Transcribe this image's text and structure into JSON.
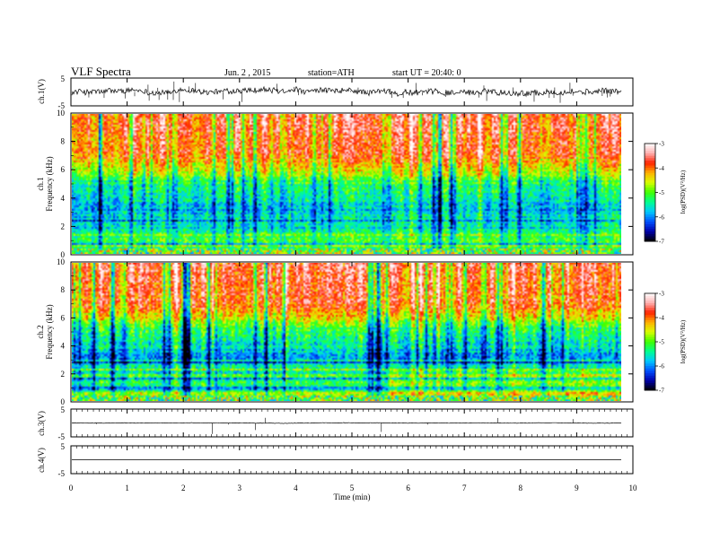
{
  "header": {
    "title": "VLF  Spectra",
    "date": "Jun. 2 , 2015",
    "station": "station=ATH",
    "start": "start  UT  =   20:40: 0"
  },
  "chart_data": {
    "type": "heatmap",
    "x_axis": {
      "label": "Time  (min)",
      "range": [
        0,
        10
      ],
      "ticks": [
        "0",
        "1",
        "2",
        "3",
        "4",
        "5",
        "6",
        "7",
        "8",
        "9",
        "10"
      ]
    },
    "data_end_min": 9.8,
    "panels": [
      {
        "id": "ch1-waveform",
        "kind": "line",
        "ylabel": "ch.1(V)",
        "yticks": [
          "5",
          "-5"
        ],
        "ylim": [
          -5,
          5
        ],
        "baseline": 0,
        "noise": "high"
      },
      {
        "id": "ch1-spectrogram",
        "kind": "heatmap",
        "ylabel": [
          "ch.1",
          "Frequency  (kHz)"
        ],
        "yticks": [
          "10",
          "8",
          "6",
          "4",
          "2",
          "0"
        ],
        "ylim": [
          0,
          10
        ],
        "colorbar": {
          "label": "log(PSD)(V²/Hz)",
          "range": [
            -7,
            -3
          ],
          "ticks": [
            "-3",
            "-4",
            "-5",
            "-6",
            "-7"
          ]
        }
      },
      {
        "id": "ch2-spectrogram",
        "kind": "heatmap",
        "ylabel": [
          "ch.2",
          "Frequency  (kHz)"
        ],
        "yticks": [
          "10",
          "8",
          "6",
          "4",
          "2",
          "0"
        ],
        "ylim": [
          0,
          10
        ],
        "colorbar": {
          "label": "log(PSD)(V²/Hz)",
          "range": [
            -7,
            -3
          ],
          "ticks": [
            "-3",
            "-4",
            "-5",
            "-6",
            "-7"
          ]
        }
      },
      {
        "id": "ch3-waveform",
        "kind": "line",
        "ylabel": "ch.3(V)",
        "yticks": [
          "5",
          "-5"
        ],
        "ylim": [
          -5,
          5
        ],
        "baseline": 0,
        "noise": "low"
      },
      {
        "id": "ch4-waveform",
        "kind": "line",
        "ylabel": "ch.4(V)",
        "yticks": [
          "5",
          "-5"
        ],
        "ylim": [
          -5,
          5
        ],
        "baseline": 0,
        "noise": "none"
      }
    ],
    "colormap": [
      "#000000",
      "#0000aa",
      "#0050ff",
      "#00c8ff",
      "#00ff90",
      "#40ff00",
      "#d8ff00",
      "#ffb000",
      "#ff2000",
      "#ffb0b0",
      "#ffffff"
    ]
  }
}
